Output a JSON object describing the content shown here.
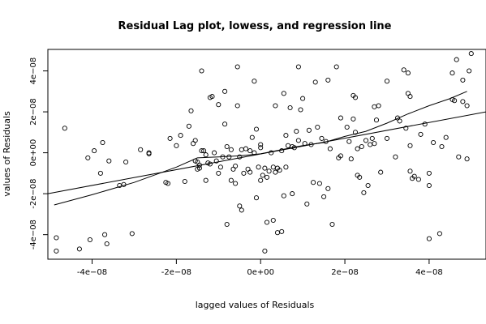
{
  "chart_data": {
    "type": "scatter",
    "title": "Residual Lag plot, lowess, and regression line",
    "xlabel": "lagged values of Residuals",
    "ylabel": "values of Residuals",
    "xlim": [
      -5.05e-08,
      5.35e-08
    ],
    "ylim": [
      -5.2e-08,
      5.05e-08
    ],
    "xticks": [
      {
        "value": -4e-08,
        "label": "-4e−08"
      },
      {
        "value": -2e-08,
        "label": "-2e−08"
      },
      {
        "value": 0,
        "label": "0e+00"
      },
      {
        "value": 2e-08,
        "label": "2e−08"
      },
      {
        "value": 4e-08,
        "label": "4e−08"
      }
    ],
    "yticks": [
      {
        "value": -4e-08,
        "label": "-4e−08"
      },
      {
        "value": -2e-08,
        "label": "-2e−08"
      },
      {
        "value": 0,
        "label": "0e+00"
      },
      {
        "value": 2e-08,
        "label": "2e−08"
      },
      {
        "value": 4e-08,
        "label": "4e−08"
      }
    ],
    "grid": false,
    "points": [
      [
        -4.85e-08,
        -4.15e-08
      ],
      [
        -4.85e-08,
        -4.8e-08
      ],
      [
        -4.65e-08,
        1.2e-08
      ],
      [
        -4.3e-08,
        -4.7e-08
      ],
      [
        -4.1e-08,
        -2.5e-09
      ],
      [
        -4.05e-08,
        -4.25e-08
      ],
      [
        -3.95e-08,
        1e-09
      ],
      [
        -3.8e-08,
        -1e-08
      ],
      [
        -3.75e-08,
        5e-09
      ],
      [
        -3.7e-08,
        -4e-08
      ],
      [
        -3.65e-08,
        -4.45e-08
      ],
      [
        -3.6e-08,
        -4e-09
      ],
      [
        -3.35e-08,
        -1.6e-08
      ],
      [
        -3.25e-08,
        -1.55e-08
      ],
      [
        -3.2e-08,
        -4.5e-09
      ],
      [
        -3.05e-08,
        -3.95e-08
      ],
      [
        -2.85e-08,
        1.5e-09
      ],
      [
        -2.65e-08,
        0.0
      ],
      [
        -2.65e-08,
        -5e-10
      ],
      [
        -2.25e-08,
        -1.45e-08
      ],
      [
        -2.2e-08,
        -1.5e-08
      ],
      [
        -2.15e-08,
        7e-09
      ],
      [
        -2e-08,
        3.5e-09
      ],
      [
        -1.9e-08,
        8.5e-09
      ],
      [
        -1.8e-08,
        -1.4e-08
      ],
      [
        -1.7e-08,
        1.3e-08
      ],
      [
        -1.65e-08,
        2.05e-08
      ],
      [
        -1.6e-08,
        4.5e-09
      ],
      [
        -1.55e-08,
        6e-09
      ],
      [
        -1.55e-08,
        -4e-09
      ],
      [
        -1.5e-08,
        -4.5e-09
      ],
      [
        -1.5e-08,
        -8e-09
      ],
      [
        -1.45e-08,
        -6e-09
      ],
      [
        -1.45e-08,
        -7.5e-09
      ],
      [
        -1.4e-08,
        4e-08
      ],
      [
        -1.4e-08,
        1e-09
      ],
      [
        -1.35e-08,
        1e-09
      ],
      [
        -1.3e-08,
        -1e-09
      ],
      [
        -1.3e-08,
        -1.35e-08
      ],
      [
        -1.25e-08,
        -5e-09
      ],
      [
        -1.2e-08,
        -5.5e-09
      ],
      [
        -1.2e-08,
        2.7e-08
      ],
      [
        -1.15e-08,
        2.75e-08
      ],
      [
        -1.1e-08,
        0.0
      ],
      [
        -1.05e-08,
        -4e-09
      ],
      [
        -1e-08,
        2.35e-08
      ],
      [
        -1e-08,
        -1e-08
      ],
      [
        -9.5e-09,
        -7e-09
      ],
      [
        -9e-09,
        -2e-09
      ],
      [
        -8.5e-09,
        3e-08
      ],
      [
        -8.5e-09,
        1.4e-08
      ],
      [
        -8e-09,
        -3.5e-08
      ],
      [
        -8e-09,
        3e-09
      ],
      [
        -7.5e-09,
        -2e-09
      ],
      [
        -7e-09,
        1.5e-09
      ],
      [
        -7e-09,
        -1.35e-08
      ],
      [
        -6.5e-09,
        -8e-09
      ],
      [
        -6e-09,
        -6.5e-09
      ],
      [
        -6e-09,
        -1.5e-08
      ],
      [
        -5.5e-09,
        4.2e-08
      ],
      [
        -5.5e-09,
        2.3e-08
      ],
      [
        -5e-09,
        -2e-09
      ],
      [
        -5e-09,
        -2.6e-08
      ],
      [
        -4.5e-09,
        -2.8e-08
      ],
      [
        -4.5e-09,
        1.5e-09
      ],
      [
        -4e-09,
        -1e-08
      ],
      [
        -3.5e-09,
        2e-09
      ],
      [
        -3e-09,
        -8e-09
      ],
      [
        -2.5e-09,
        -9.5e-09
      ],
      [
        -2.5e-09,
        1e-09
      ],
      [
        -2e-09,
        7.5e-09
      ],
      [
        -1.5e-09,
        0.0
      ],
      [
        -1.5e-09,
        3.5e-08
      ],
      [
        -1e-09,
        -2.2e-08
      ],
      [
        -1e-09,
        1.15e-08
      ],
      [
        -5e-10,
        -7e-09
      ],
      [
        0.0,
        4e-09
      ],
      [
        0.0,
        -1.35e-08
      ],
      [
        0.0,
        2.5e-09
      ],
      [
        5e-10,
        -1.1e-08
      ],
      [
        1e-09,
        -4.8e-08
      ],
      [
        1e-09,
        -7.5e-09
      ],
      [
        1.5e-09,
        -3.4e-08
      ],
      [
        1.5e-09,
        -1.2e-08
      ],
      [
        2e-09,
        -9e-09
      ],
      [
        2.5e-09,
        0.0
      ],
      [
        3e-09,
        -3.3e-08
      ],
      [
        3e-09,
        -7e-09
      ],
      [
        3.5e-09,
        2.3e-08
      ],
      [
        3.5e-09,
        -9.5e-09
      ],
      [
        4e-09,
        -7.5e-09
      ],
      [
        4e-09,
        -3.9e-08
      ],
      [
        4.5e-09,
        -8.5e-09
      ],
      [
        5e-09,
        1e-09
      ],
      [
        5e-09,
        -3.85e-08
      ],
      [
        5.5e-09,
        2.9e-08
      ],
      [
        5.5e-09,
        -2.1e-08
      ],
      [
        6e-09,
        -7e-09
      ],
      [
        6e-09,
        8.5e-09
      ],
      [
        6.5e-09,
        3.5e-09
      ],
      [
        7e-09,
        2.2e-08
      ],
      [
        7.5e-09,
        -2e-08
      ],
      [
        7.5e-09,
        3e-09
      ],
      [
        8e-09,
        2.5e-09
      ],
      [
        8.5e-09,
        1.05e-08
      ],
      [
        9e-09,
        6e-09
      ],
      [
        9.5e-09,
        2.1e-08
      ],
      [
        1e-08,
        2.65e-08
      ],
      [
        1.05e-08,
        4.5e-09
      ],
      [
        1.1e-08,
        -2.5e-08
      ],
      [
        1.15e-08,
        1.1e-08
      ],
      [
        1.2e-08,
        4e-09
      ],
      [
        1.25e-08,
        -1.45e-08
      ],
      [
        1.3e-08,
        3.45e-08
      ],
      [
        1.35e-08,
        1.25e-08
      ],
      [
        1.4e-08,
        -1.5e-08
      ],
      [
        1.45e-08,
        7e-09
      ],
      [
        1.5e-08,
        -2.15e-08
      ],
      [
        1.55e-08,
        5.5e-09
      ],
      [
        1.6e-08,
        -1.75e-08
      ],
      [
        1.65e-08,
        2e-09
      ],
      [
        1.7e-08,
        -3.5e-08
      ],
      [
        1.8e-08,
        4.2e-08
      ],
      [
        1.85e-08,
        -2.5e-09
      ],
      [
        1.9e-08,
        -1.5e-09
      ],
      [
        2.05e-08,
        1.25e-08
      ],
      [
        2.1e-08,
        5.5e-09
      ],
      [
        2.15e-08,
        -3e-09
      ],
      [
        2.2e-08,
        1.65e-08
      ],
      [
        2.25e-08,
        1e-08
      ],
      [
        2.3e-08,
        2e-09
      ],
      [
        2.4e-08,
        3e-09
      ],
      [
        2.45e-08,
        -1.95e-08
      ],
      [
        2.5e-08,
        6e-09
      ],
      [
        2.6e-08,
        4e-09
      ],
      [
        2.7e-08,
        2.25e-08
      ],
      [
        2.75e-08,
        1.6e-08
      ],
      [
        2.85e-08,
        -9.5e-09
      ],
      [
        3e-08,
        3.5e-08
      ],
      [
        3.2e-08,
        -2e-09
      ],
      [
        3.25e-08,
        1.7e-08
      ],
      [
        3.3e-08,
        1.55e-08
      ],
      [
        3.45e-08,
        1.2e-08
      ],
      [
        3.5e-08,
        2.9e-08
      ],
      [
        3.55e-08,
        2.75e-08
      ],
      [
        3.6e-08,
        -1.25e-08
      ],
      [
        3.65e-08,
        -1.15e-08
      ],
      [
        3.75e-08,
        -1.3e-08
      ],
      [
        3.9e-08,
        1.4e-08
      ],
      [
        4e-08,
        -1.6e-08
      ],
      [
        4.1e-08,
        5e-09
      ],
      [
        4.3e-08,
        3e-09
      ],
      [
        4.4e-08,
        7.5e-09
      ],
      [
        4.55e-08,
        2.6e-08
      ],
      [
        4.6e-08,
        2.55e-08
      ],
      [
        4.7e-08,
        -2e-09
      ],
      [
        4.8e-08,
        2.5e-08
      ],
      [
        4.9e-08,
        2.3e-08
      ],
      [
        5e-08,
        4.85e-08
      ],
      [
        3e-08,
        7e-09
      ],
      [
        3.55e-08,
        3.5e-09
      ],
      [
        3.8e-08,
        9e-09
      ],
      [
        4.55e-08,
        3.9e-08
      ],
      [
        4.65e-08,
        4.55e-08
      ],
      [
        4.8e-08,
        3.55e-08
      ],
      [
        4.95e-08,
        4e-08
      ],
      [
        3.4e-08,
        4.05e-08
      ],
      [
        3.5e-08,
        3.9e-08
      ],
      [
        4e-08,
        -4.2e-08
      ],
      [
        4.25e-08,
        -3.95e-08
      ],
      [
        4e-08,
        -1e-08
      ],
      [
        3.55e-08,
        -9e-09
      ],
      [
        4.9e-08,
        -3e-09
      ],
      [
        2.35e-08,
        -1.2e-08
      ],
      [
        2.3e-08,
        -1.1e-08
      ],
      [
        2.2e-08,
        2.8e-08
      ],
      [
        2.25e-08,
        2.7e-08
      ],
      [
        1.6e-08,
        3.55e-08
      ],
      [
        9e-09,
        4.2e-08
      ],
      [
        2.55e-08,
        -1.6e-08
      ],
      [
        2.65e-08,
        7e-09
      ],
      [
        2.7e-08,
        4.5e-09
      ],
      [
        2.8e-08,
        2.3e-08
      ],
      [
        1.9e-08,
        1.7e-08
      ]
    ],
    "lowess": [
      [
        -4.9e-08,
        -2.55e-08
      ],
      [
        -4e-08,
        -2.05e-08
      ],
      [
        -3e-08,
        -1.45e-08
      ],
      [
        -2e-08,
        -7e-09
      ],
      [
        -1.5e-08,
        -2.5e-09
      ],
      [
        -1e-08,
        -2e-09
      ],
      [
        -5e-09,
        -1.5e-09
      ],
      [
        0.0,
        -5e-10
      ],
      [
        5e-09,
        1.5e-09
      ],
      [
        1e-08,
        3.5e-09
      ],
      [
        1.5e-08,
        5e-09
      ],
      [
        2e-08,
        8e-09
      ],
      [
        2.5e-08,
        1.05e-08
      ],
      [
        3e-08,
        1.45e-08
      ],
      [
        3.5e-08,
        1.9e-08
      ],
      [
        4e-08,
        2.3e-08
      ],
      [
        4.5e-08,
        2.65e-08
      ],
      [
        4.9e-08,
        3e-08
      ]
    ],
    "regression": [
      [
        -5.05e-08,
        -2e-08
      ],
      [
        5.35e-08,
        2e-08
      ]
    ]
  }
}
